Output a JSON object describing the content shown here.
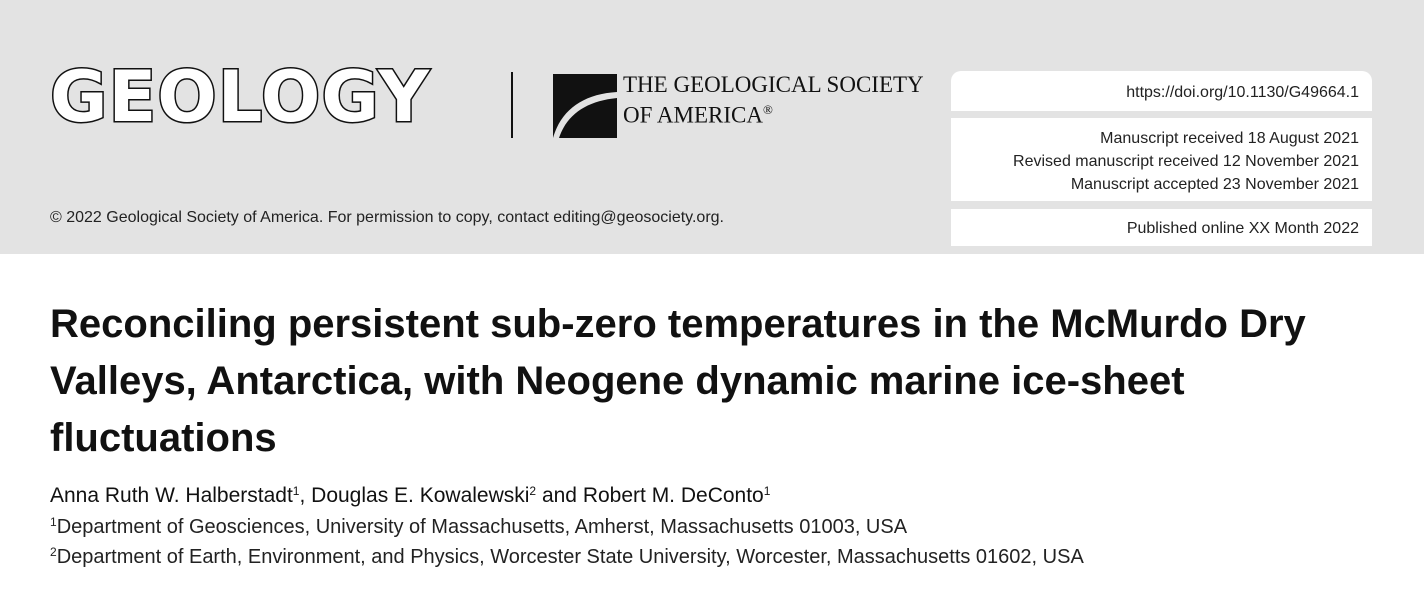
{
  "header": {
    "journal_name": "GEOLOGY",
    "publisher_line1": "THE GEOLOGICAL SOCIETY",
    "publisher_line2": "OF AMERICA",
    "publisher_mark": "®",
    "copyright": "© 2022 Geological Society of America. For permission to copy, contact editing@geosociety.org."
  },
  "article_info": {
    "doi": "https://doi.org/10.1130/G49664.1",
    "received": "Manuscript received 18 August 2021",
    "revised": "Revised manuscript received 12 November 2021",
    "accepted": "Manuscript accepted 23 November 2021",
    "published": "Published online XX Month 2022"
  },
  "article": {
    "title": "Reconciling persistent sub-zero temperatures in the McMurdo Dry Valleys, Antarctica, with Neogene dynamic marine ice-sheet fluctuations",
    "authors": [
      {
        "name": "Anna Ruth W. Halberstadt",
        "aff": "1",
        "sep": ", "
      },
      {
        "name": "Douglas E. Kowalewski",
        "aff": "2",
        "sep": " and "
      },
      {
        "name": "Robert M. DeConto",
        "aff": "1",
        "sep": ""
      }
    ],
    "affiliations": [
      {
        "num": "1",
        "text": "Department of Geosciences, University of Massachusetts, Amherst, Massachusetts 01003, USA"
      },
      {
        "num": "2",
        "text": "Department of Earth, Environment, and Physics, Worcester State University, Worcester, Massachusetts 01602, USA"
      }
    ]
  },
  "colors": {
    "banner_background": "#e3e3e3",
    "text": "#111111"
  }
}
